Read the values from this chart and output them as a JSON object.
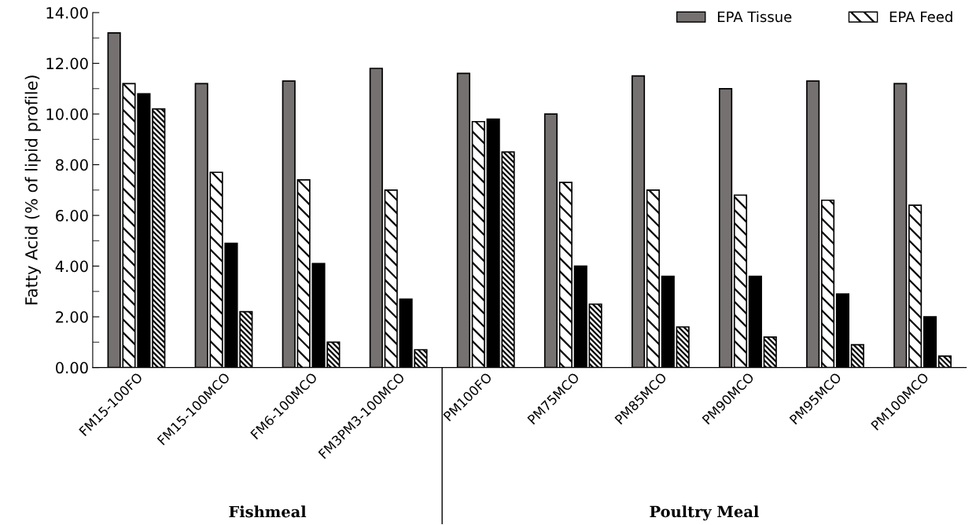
{
  "chart_data": {
    "type": "bar",
    "ylabel": "Fatty Acid (% of lipid profile)",
    "categories": [
      "FM15-100FO",
      "FM15-100MCO",
      "FM6-100MCO",
      "FM3PM3-100MCO",
      "PM100FO",
      "PM75MCO",
      "PM85MCO",
      "PM90MCO",
      "PM95MCO",
      "PM100MCO"
    ],
    "series": [
      {
        "name": "EPA Tissue",
        "color": "#767171",
        "values": [
          13.2,
          11.2,
          11.3,
          11.8,
          11.6,
          10.0,
          11.5,
          11.0,
          11.3,
          11.2
        ]
      },
      {
        "name": "EPA Feed",
        "color": "#000000",
        "values": [
          11.2,
          7.7,
          7.4,
          7.0,
          9.7,
          7.3,
          7.0,
          6.8,
          6.6,
          6.4
        ]
      },
      {
        "color": "#000000",
        "values": [
          10.8,
          4.9,
          4.1,
          2.7,
          9.8,
          4.0,
          3.6,
          3.6,
          2.9,
          2.0
        ]
      },
      {
        "color": "#000000",
        "values": [
          10.2,
          2.2,
          1.0,
          0.7,
          8.5,
          2.5,
          1.6,
          1.2,
          0.9,
          0.45
        ]
      }
    ],
    "ylim": [
      0,
      14
    ],
    "yticks": [
      {
        "value": 0,
        "label": "0.00"
      },
      {
        "value": 2,
        "label": "2.00"
      },
      {
        "value": 4,
        "label": "4.00"
      },
      {
        "value": 6,
        "label": "6.00"
      },
      {
        "value": 8,
        "label": "8.00"
      },
      {
        "value": 10,
        "label": "10.00"
      },
      {
        "value": 12,
        "label": "12.00"
      },
      {
        "value": 14,
        "label": "14.00"
      }
    ],
    "annotations": [
      "Fishmeal",
      "Poultry Meal"
    ],
    "legend": "top right",
    "grid": false
  }
}
